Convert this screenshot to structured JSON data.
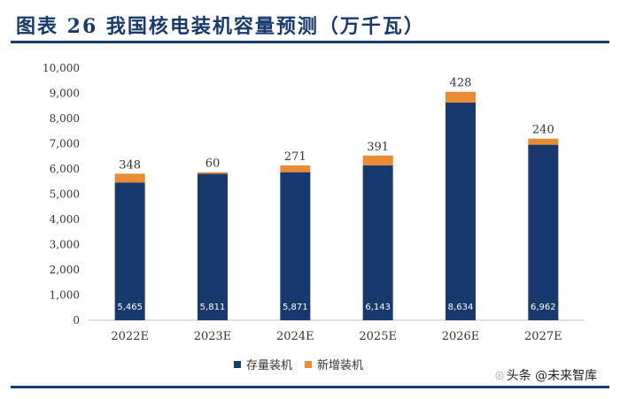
{
  "title": "图表 26   我国核电装机容量预测（万千瓦）",
  "colors": {
    "stock": "#17396e",
    "new": "#e98a35",
    "accent": "#17396e"
  },
  "watermark": "头条 @未来智库",
  "chart_data": {
    "type": "bar",
    "stacked": true,
    "categories": [
      "2022E",
      "2023E",
      "2024E",
      "2025E",
      "2026E",
      "2027E"
    ],
    "series": [
      {
        "name": "存量装机",
        "values": [
          5465,
          5811,
          5871,
          6143,
          8634,
          6962
        ],
        "value_labels": [
          "5,465",
          "5,811",
          "5,871",
          "6,143",
          "8,634",
          "6,962"
        ]
      },
      {
        "name": "新增装机",
        "values": [
          348,
          60,
          271,
          391,
          428,
          240
        ],
        "value_labels": [
          "348",
          "60",
          "271",
          "391",
          "428",
          "240"
        ]
      }
    ],
    "ylim": [
      0,
      10000
    ],
    "yticks": [
      "0",
      "1,000",
      "2,000",
      "3,000",
      "4,000",
      "5,000",
      "6,000",
      "7,000",
      "8,000",
      "9,000",
      "10,000"
    ],
    "grid": false,
    "legend_position": "bottom"
  }
}
